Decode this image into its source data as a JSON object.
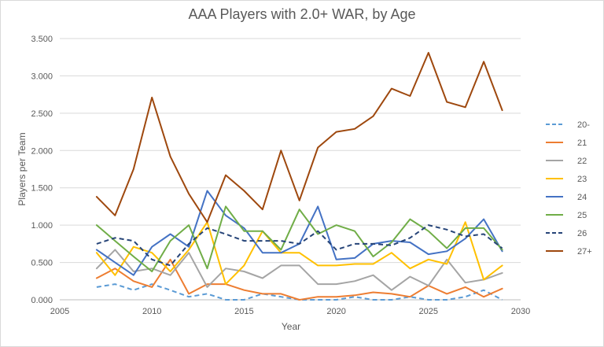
{
  "chart_data": {
    "type": "line",
    "title": "AAA Players with 2.0+ WAR, by Age",
    "xlabel": "Year",
    "ylabel": "Players per Team",
    "xlim": [
      2005,
      2030
    ],
    "ylim": [
      0,
      3.5
    ],
    "xticks": [
      "2005",
      "2010",
      "2015",
      "2020",
      "2025",
      "2030"
    ],
    "yticks": [
      "0.000",
      "0.500",
      "1.000",
      "1.500",
      "2.000",
      "2.500",
      "3.000",
      "3.500"
    ],
    "grid": "horizontal",
    "legend_position": "right",
    "x": [
      2007,
      2008,
      2009,
      2010,
      2011,
      2012,
      2013,
      2014,
      2015,
      2016,
      2017,
      2018,
      2019,
      2020,
      2021,
      2022,
      2023,
      2024,
      2025,
      2026,
      2027,
      2028,
      2029
    ],
    "series": [
      {
        "name": "20-",
        "color": "#5b9bd5",
        "dash": "dashed",
        "values": [
          0.17,
          0.21,
          0.13,
          0.21,
          0.13,
          0.04,
          0.08,
          0.0,
          0.0,
          0.08,
          0.04,
          0.0,
          0.0,
          0.0,
          0.04,
          0.0,
          0.0,
          0.04,
          0.0,
          0.0,
          0.04,
          0.13,
          0.0
        ]
      },
      {
        "name": "21",
        "color": "#ed7d31",
        "dash": "solid",
        "values": [
          0.29,
          0.42,
          0.25,
          0.17,
          0.54,
          0.08,
          0.21,
          0.21,
          0.13,
          0.08,
          0.08,
          0.0,
          0.04,
          0.04,
          0.06,
          0.1,
          0.08,
          0.04,
          0.19,
          0.08,
          0.17,
          0.04,
          0.15
        ]
      },
      {
        "name": "22",
        "color": "#a5a5a5",
        "dash": "solid",
        "values": [
          0.42,
          0.67,
          0.38,
          0.42,
          0.33,
          0.63,
          0.17,
          0.42,
          0.38,
          0.29,
          0.46,
          0.46,
          0.21,
          0.21,
          0.25,
          0.33,
          0.13,
          0.31,
          0.19,
          0.54,
          0.23,
          0.27,
          0.36
        ]
      },
      {
        "name": "23",
        "color": "#ffc000",
        "dash": "solid",
        "values": [
          0.63,
          0.33,
          0.71,
          0.63,
          0.38,
          0.67,
          1.04,
          0.21,
          0.46,
          0.92,
          0.63,
          0.63,
          0.46,
          0.46,
          0.48,
          0.48,
          0.63,
          0.42,
          0.54,
          0.48,
          1.04,
          0.27,
          0.46
        ]
      },
      {
        "name": "24",
        "color": "#4472c4",
        "dash": "solid",
        "values": [
          0.67,
          0.5,
          0.33,
          0.71,
          0.88,
          0.71,
          1.46,
          1.13,
          0.96,
          0.63,
          0.63,
          0.75,
          1.25,
          0.54,
          0.56,
          0.75,
          0.79,
          0.77,
          0.61,
          0.65,
          0.82,
          1.08,
          0.65
        ]
      },
      {
        "name": "25",
        "color": "#70ad47",
        "dash": "solid",
        "values": [
          1.0,
          0.79,
          0.58,
          0.38,
          0.79,
          1.0,
          0.42,
          1.25,
          0.92,
          0.92,
          0.67,
          1.21,
          0.88,
          1.0,
          0.92,
          0.58,
          0.77,
          1.08,
          0.92,
          0.69,
          0.96,
          0.96,
          0.67
        ]
      },
      {
        "name": "26",
        "color": "#264478",
        "dash": "dashed",
        "values": [
          0.75,
          0.83,
          0.79,
          0.54,
          0.46,
          0.75,
          0.96,
          0.88,
          0.79,
          0.79,
          0.79,
          0.75,
          0.92,
          0.67,
          0.75,
          0.75,
          0.73,
          0.83,
          1.0,
          0.94,
          0.85,
          0.88,
          0.69
        ]
      },
      {
        "name": "27+",
        "color": "#9e480e",
        "dash": "solid",
        "values": [
          1.38,
          1.13,
          1.75,
          2.71,
          1.92,
          1.42,
          1.04,
          1.67,
          1.46,
          1.21,
          2.0,
          1.33,
          2.04,
          2.25,
          2.29,
          2.46,
          2.83,
          2.73,
          3.31,
          2.65,
          2.58,
          3.19,
          2.54
        ]
      }
    ]
  }
}
